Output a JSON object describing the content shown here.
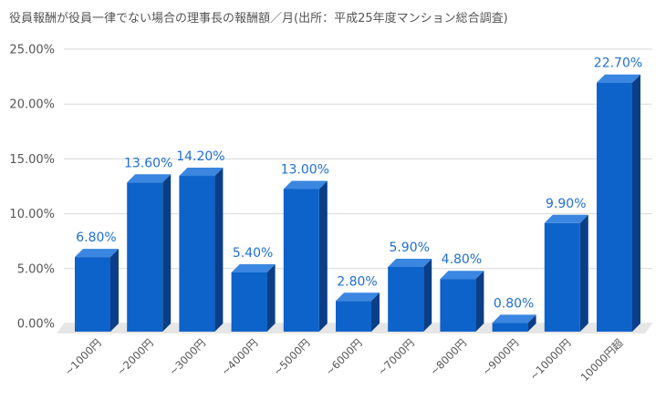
{
  "chart_data": {
    "type": "bar",
    "title": "役員報酬が役員一律でない場合の理事長の報酬額／月(出所：平成25年度マンション総合調査)",
    "categories": [
      "~1000円",
      "~2000円",
      "~3000円",
      "~4000円",
      "~5000円",
      "~6000円",
      "~7000円",
      "~8000円",
      "~9000円",
      "~10000円",
      "10000円超"
    ],
    "values": [
      6.8,
      13.6,
      14.2,
      5.4,
      13.0,
      2.8,
      5.9,
      4.8,
      0.8,
      9.9,
      22.7
    ],
    "data_labels": [
      "6.80%",
      "13.60%",
      "14.20%",
      "5.40%",
      "13.00%",
      "2.80%",
      "5.90%",
      "4.80%",
      "0.80%",
      "9.90%",
      "22.70%"
    ],
    "y_ticks": [
      "0.00%",
      "5.00%",
      "10.00%",
      "15.00%",
      "20.00%",
      "25.00%"
    ],
    "ylim": [
      0,
      25
    ],
    "xlabel": "",
    "ylabel": "",
    "grid": true,
    "legend": "none",
    "colors": {
      "bar_front": "#0d63c9",
      "bar_top": "#3a86e0",
      "bar_side": "#0a3f87",
      "label": "#1f6fd6",
      "grid": "#d9d9d9",
      "floor": "#e6e6e6"
    }
  }
}
